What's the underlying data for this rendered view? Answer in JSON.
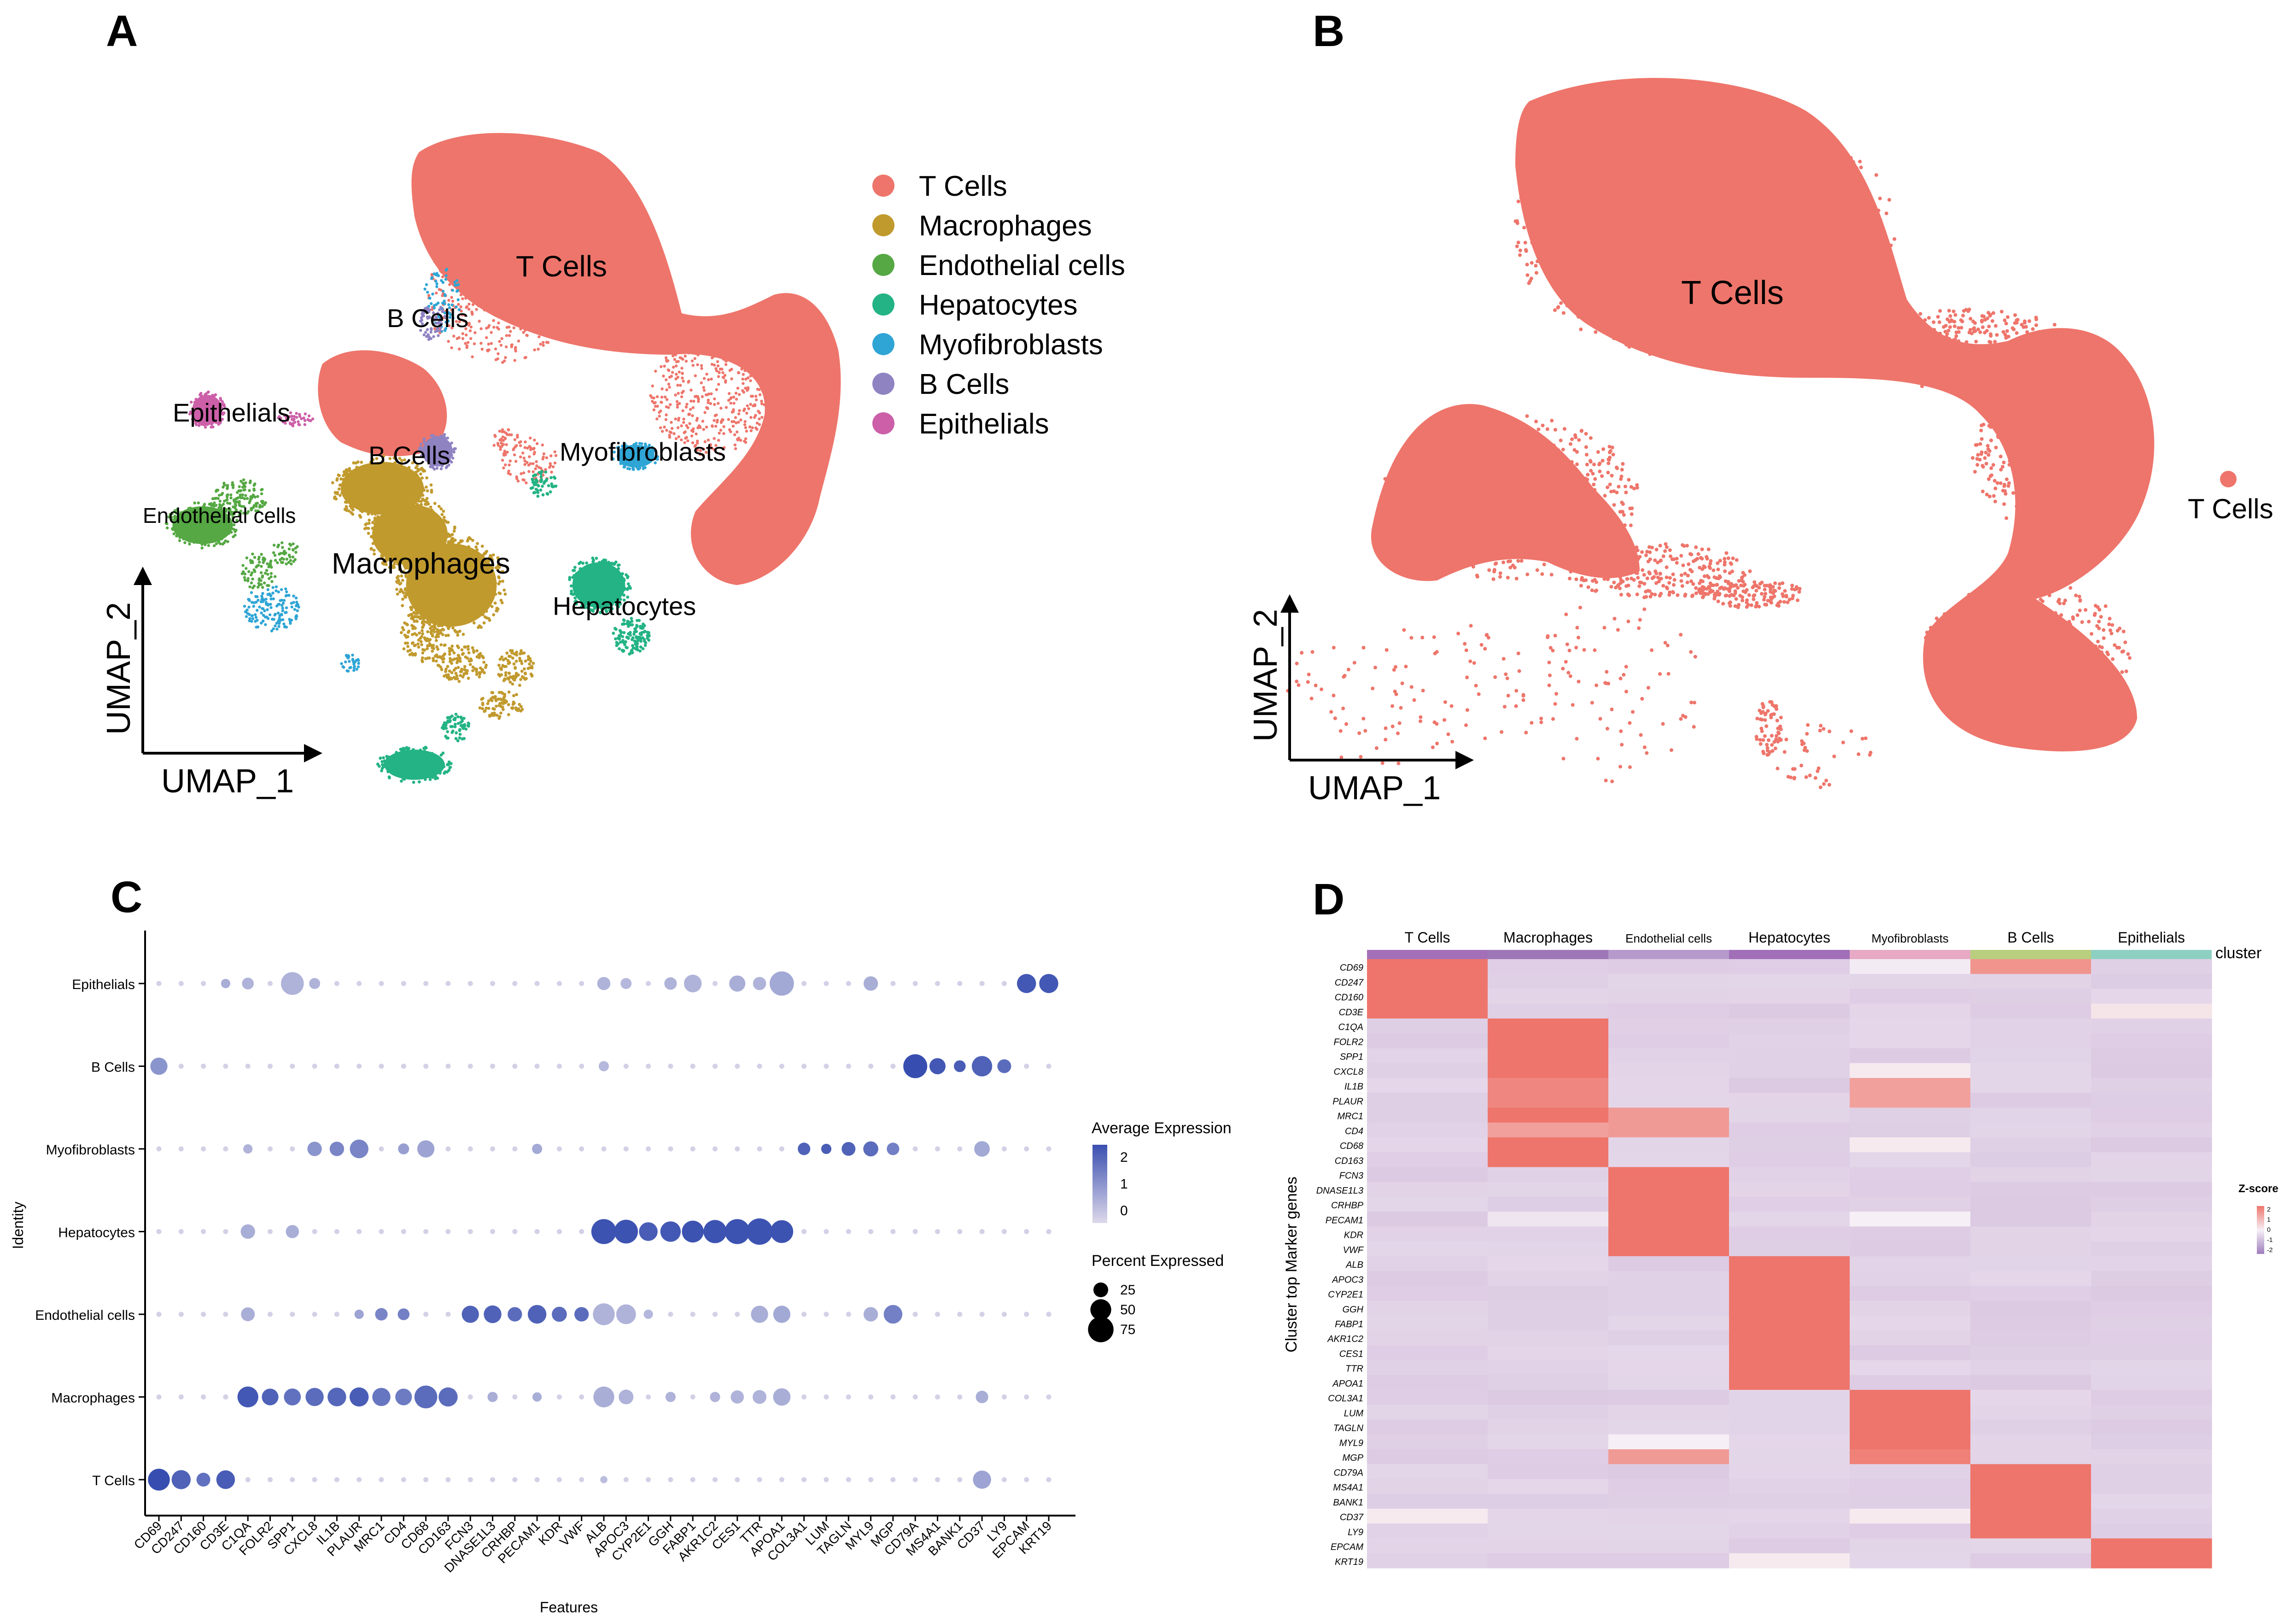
{
  "panels": {
    "A": {
      "letter": "A"
    },
    "B": {
      "letter": "B"
    },
    "C": {
      "letter": "C"
    },
    "D": {
      "letter": "D"
    }
  },
  "colors": {
    "T Cells": "#ee756b",
    "Macrophages": "#c19a2e",
    "Endothelial cells": "#55a843",
    "Hepatocytes": "#23b384",
    "Myofibroblasts": "#2fa5d5",
    "B Cells": "#8f83c2",
    "Epithelials": "#cc5fa8"
  },
  "umap_axes": {
    "x": "UMAP_1",
    "y": "UMAP_2"
  },
  "chart_data": [
    {
      "type": "scatter",
      "panel": "A",
      "clusters": [
        "T Cells",
        "Macrophages",
        "Endothelial cells",
        "Hepatocytes",
        "Myofibroblasts",
        "B Cells",
        "Epithelials"
      ],
      "legend": [
        "T Cells",
        "Macrophages",
        "Endothelial cells",
        "Hepatocytes",
        "Myofibroblasts",
        "B Cells",
        "Epithelials"
      ],
      "legend_position": "right",
      "cluster_labels": [
        "T Cells",
        "B Cells",
        "Epithelials",
        "B Cells",
        "Myofibroblasts",
        "Endothelial cells",
        "Macrophages",
        "Hepatocytes"
      ],
      "xlabel": "UMAP_1",
      "ylabel": "UMAP_2"
    },
    {
      "type": "scatter",
      "panel": "B",
      "clusters": [
        "T Cells"
      ],
      "legend": [
        "T Cells"
      ],
      "legend_position": "right",
      "cluster_labels": [
        "T Cells"
      ],
      "xlabel": "UMAP_1",
      "ylabel": "UMAP_2"
    },
    {
      "type": "dot",
      "panel": "C",
      "xlabel": "Features",
      "ylabel": "Identity",
      "identities": [
        "Epithelials",
        "B Cells",
        "Myofibroblasts",
        "Hepatocytes",
        "Endothelial cells",
        "Macrophages",
        "T Cells"
      ],
      "features": [
        "CD69",
        "CD247",
        "CD160",
        "CD3E",
        "C1QA",
        "FOLR2",
        "SPP1",
        "CXCL8",
        "IL1B",
        "PLAUR",
        "MRC1",
        "CD4",
        "CD68",
        "CD163",
        "FCN3",
        "DNASE1L3",
        "CRHBP",
        "PECAM1",
        "KDR",
        "VWF",
        "ALB",
        "APOC3",
        "CYP2E1",
        "GGH",
        "FABP1",
        "AKR1C2",
        "CES1",
        "TTR",
        "APOA1",
        "COL3A1",
        "LUM",
        "TAGLN",
        "MYL9",
        "MGP",
        "CD79A",
        "MS4A1",
        "BANK1",
        "CD37",
        "LY9",
        "EPCAM",
        "KRT19"
      ],
      "color_legend": {
        "title": "Average Expression",
        "ticks": [
          2,
          1,
          0
        ]
      },
      "size_legend": {
        "title": "Percent Expressed",
        "ticks": [
          25,
          50,
          75
        ]
      },
      "points": {
        "T Cells": [
          [
            0,
            2.2,
            55
          ],
          [
            1,
            1.8,
            42
          ],
          [
            2,
            1.5,
            22
          ],
          [
            3,
            1.9,
            40
          ],
          [
            37,
            0.5,
            38
          ],
          [
            20,
            0,
            6
          ]
        ],
        "Macrophages": [
          [
            4,
            2.0,
            50
          ],
          [
            5,
            1.8,
            32
          ],
          [
            6,
            1.5,
            33
          ],
          [
            7,
            1.6,
            38
          ],
          [
            8,
            1.7,
            40
          ],
          [
            9,
            1.9,
            42
          ],
          [
            10,
            1.4,
            38
          ],
          [
            11,
            1.3,
            32
          ],
          [
            12,
            1.6,
            60
          ],
          [
            13,
            1.6,
            42
          ],
          [
            15,
            0.3,
            12
          ],
          [
            17,
            0.3,
            10
          ],
          [
            20,
            0.3,
            50
          ],
          [
            21,
            0.2,
            25
          ],
          [
            23,
            0.2,
            12
          ],
          [
            25,
            0.2,
            12
          ],
          [
            26,
            0.2,
            20
          ],
          [
            27,
            0.2,
            22
          ],
          [
            28,
            0.3,
            35
          ],
          [
            37,
            0.3,
            18
          ]
        ],
        "Endothelial cells": [
          [
            4,
            0.3,
            22
          ],
          [
            9,
            0.5,
            10
          ],
          [
            10,
            1.1,
            18
          ],
          [
            11,
            1.2,
            16
          ],
          [
            14,
            1.8,
            34
          ],
          [
            15,
            1.8,
            36
          ],
          [
            16,
            1.6,
            24
          ],
          [
            17,
            1.8,
            40
          ],
          [
            18,
            1.6,
            26
          ],
          [
            19,
            1.6,
            24
          ],
          [
            20,
            0.2,
            55
          ],
          [
            21,
            0.2,
            45
          ],
          [
            22,
            0.1,
            10
          ],
          [
            27,
            0.3,
            34
          ],
          [
            28,
            0.4,
            34
          ],
          [
            32,
            0.3,
            24
          ],
          [
            33,
            1.2,
            40
          ]
        ],
        "Hepatocytes": [
          [
            4,
            0.3,
            24
          ],
          [
            6,
            0.3,
            20
          ],
          [
            20,
            2.1,
            72
          ],
          [
            21,
            2.1,
            65
          ],
          [
            22,
            1.9,
            40
          ],
          [
            23,
            2.0,
            48
          ],
          [
            24,
            2.1,
            55
          ],
          [
            25,
            2.1,
            62
          ],
          [
            26,
            2.1,
            72
          ],
          [
            27,
            2.1,
            80
          ],
          [
            28,
            2.1,
            60
          ]
        ],
        "Myofibroblasts": [
          [
            4,
            0.2,
            10
          ],
          [
            7,
            0.8,
            24
          ],
          [
            8,
            1.1,
            24
          ],
          [
            9,
            1.1,
            40
          ],
          [
            11,
            0.6,
            14
          ],
          [
            12,
            0.5,
            34
          ],
          [
            17,
            0.4,
            12
          ],
          [
            29,
            1.8,
            18
          ],
          [
            30,
            1.9,
            12
          ],
          [
            31,
            1.8,
            22
          ],
          [
            32,
            1.6,
            26
          ],
          [
            33,
            1.2,
            18
          ],
          [
            37,
            0.4,
            28
          ]
        ],
        "B Cells": [
          [
            0,
            0.8,
            34
          ],
          [
            34,
            2.2,
            66
          ],
          [
            35,
            2.0,
            30
          ],
          [
            36,
            1.9,
            16
          ],
          [
            37,
            1.8,
            48
          ],
          [
            38,
            1.6,
            22
          ],
          [
            20,
            0.1,
            12
          ]
        ],
        "Epithelials": [
          [
            3,
            0.3,
            10
          ],
          [
            4,
            0.2,
            16
          ],
          [
            6,
            0.2,
            60
          ],
          [
            7,
            0.2,
            14
          ],
          [
            20,
            0.2,
            20
          ],
          [
            21,
            0.1,
            14
          ],
          [
            26,
            0.3,
            30
          ],
          [
            27,
            0.2,
            20
          ],
          [
            28,
            0.4,
            68
          ],
          [
            32,
            0.3,
            24
          ],
          [
            39,
            2.0,
            42
          ],
          [
            40,
            2.0,
            42
          ],
          [
            23,
            0.2,
            18
          ],
          [
            24,
            0.2,
            36
          ]
        ]
      }
    },
    {
      "type": "heatmap",
      "panel": "D",
      "clusters": [
        "T Cells",
        "Macrophages",
        "Endothelial cells",
        "Hepatocytes",
        "Myofibroblasts",
        "B Cells",
        "Epithelials"
      ],
      "annotation_label": "cluster",
      "ylabel": "Cluster top Marker genes",
      "legend_title": "Z-score",
      "legend_ticks": [
        2,
        1,
        0,
        -1,
        -2
      ],
      "genes": [
        "CD69",
        "CD247",
        "CD160",
        "CD3E",
        "C1QA",
        "FOLR2",
        "SPP1",
        "CXCL8",
        "IL1B",
        "PLAUR",
        "MRC1",
        "CD4",
        "CD68",
        "CD163",
        "FCN3",
        "DNASE1L3",
        "CRHBP",
        "PECAM1",
        "KDR",
        "VWF",
        "ALB",
        "APOC3",
        "CYP2E1",
        "GGH",
        "FABP1",
        "AKR1C2",
        "CES1",
        "TTR",
        "APOA1",
        "COL3A1",
        "LUM",
        "TAGLN",
        "MYL9",
        "MGP",
        "CD79A",
        "MS4A1",
        "BANK1",
        "CD37",
        "LY9",
        "EPCAM",
        "KRT19"
      ],
      "gene_groups": [
        [
          0,
          3
        ],
        [
          4,
          13
        ],
        [
          14,
          19
        ],
        [
          20,
          28
        ],
        [
          29,
          33
        ],
        [
          34,
          38
        ],
        [
          39,
          40
        ]
      ],
      "overrides": [
        {
          "gene": "CD69",
          "cluster": "B Cells",
          "z": 1.5
        },
        {
          "gene": "CD69",
          "cluster": "Myofibroblasts",
          "z": -0.1
        },
        {
          "gene": "CD3E",
          "cluster": "Epithelials",
          "z": 0.2
        },
        {
          "gene": "IL1B",
          "cluster": "Macrophages",
          "z": 1.7
        },
        {
          "gene": "PLAUR",
          "cluster": "Macrophages",
          "z": 1.7
        },
        {
          "gene": "MRC1",
          "cluster": "Macrophages",
          "z": 1.9
        },
        {
          "gene": "CD4",
          "cluster": "Macrophages",
          "z": 1.3
        },
        {
          "gene": "MRC1",
          "cluster": "Endothelial cells",
          "z": 1.4
        },
        {
          "gene": "CD4",
          "cluster": "Endothelial cells",
          "z": 1.4
        },
        {
          "gene": "IL1B",
          "cluster": "Myofibroblasts",
          "z": 1.3
        },
        {
          "gene": "PLAUR",
          "cluster": "Myofibroblasts",
          "z": 1.3
        },
        {
          "gene": "CXCL8",
          "cluster": "Myofibroblasts",
          "z": 0.1
        },
        {
          "gene": "CD68",
          "cluster": "Myofibroblasts",
          "z": 0.1
        },
        {
          "gene": "MGP",
          "cluster": "Endothelial cells",
          "z": 1.4
        },
        {
          "gene": "MGP",
          "cluster": "Myofibroblasts",
          "z": 1.8
        },
        {
          "gene": "PECAM1",
          "cluster": "Macrophages",
          "z": -0.2
        },
        {
          "gene": "PECAM1",
          "cluster": "Myofibroblasts",
          "z": 0
        },
        {
          "gene": "CD37",
          "cluster": "T Cells",
          "z": 0.1
        },
        {
          "gene": "CD37",
          "cluster": "Myofibroblasts",
          "z": 0.1
        },
        {
          "gene": "KRT19",
          "cluster": "Hepatocytes",
          "z": 0.1
        },
        {
          "gene": "MYL9",
          "cluster": "Endothelial cells",
          "z": 0
        }
      ]
    }
  ]
}
